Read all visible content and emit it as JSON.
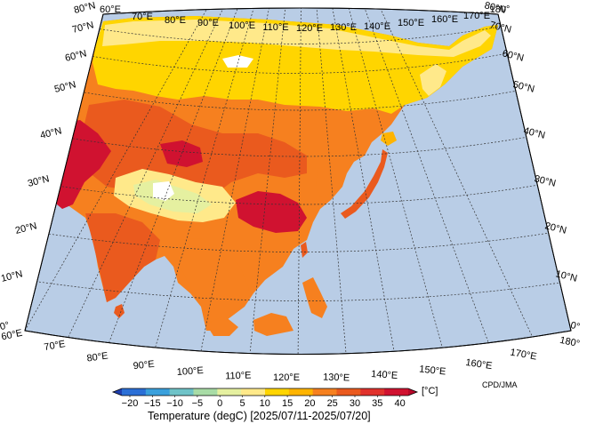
{
  "map": {
    "credit": "CPD/JMA",
    "colorbar": {
      "title": "Temperature (degC) [2025/07/11-2025/07/20]",
      "unit": "[°C]",
      "ticks": [
        "−20",
        "−15",
        "−10",
        "−5",
        "0",
        "5",
        "10",
        "15",
        "20",
        "25",
        "30",
        "35",
        "40"
      ],
      "colors": [
        "#1f3fae",
        "#2b6fd6",
        "#3aa0dc",
        "#6fc3c8",
        "#a8dca6",
        "#e5f0a0",
        "#ffe98a",
        "#ffd500",
        "#ffb400",
        "#f6801f",
        "#ea5a1e",
        "#e1322c",
        "#d01230",
        "#b8082a"
      ]
    },
    "longitude_labels": [
      "60°E",
      "70°E",
      "80°E",
      "90°E",
      "100°E",
      "110°E",
      "120°E",
      "130°E",
      "140°E",
      "150°E",
      "160°E",
      "170°E",
      "180°"
    ],
    "latitude_labels": [
      "0°",
      "10°N",
      "20°N",
      "30°N",
      "40°N",
      "50°N",
      "60°N",
      "70°N",
      "80°N"
    ],
    "colors": {
      "ocean": "#b9cde6",
      "no_data": "#ffffff",
      "grid": "#333333"
    }
  }
}
